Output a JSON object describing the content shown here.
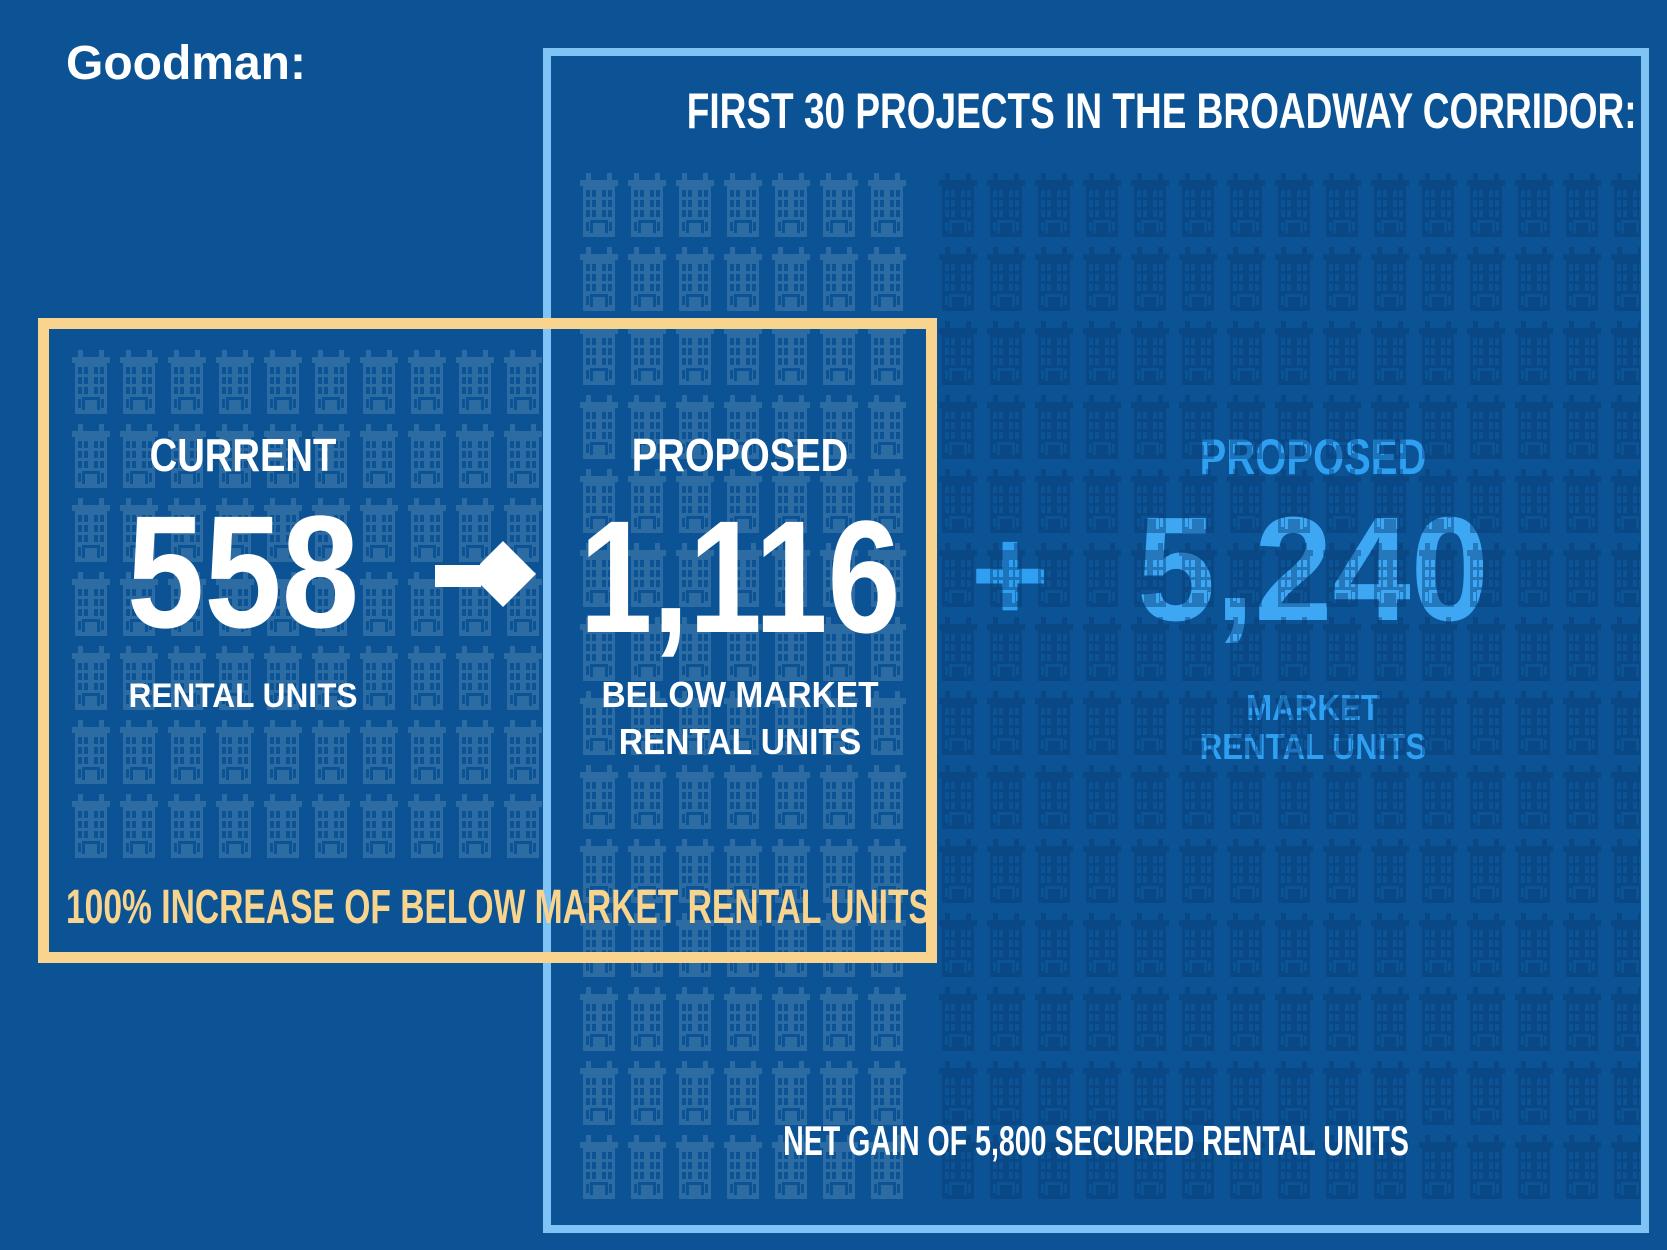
{
  "attribution": "Goodman:",
  "panel": {
    "title": "FIRST 30 PROJECTS IN THE BROADWAY CORRIDOR:",
    "footer": "NET GAIN OF 5,800 SECURED RENTAL UNITS"
  },
  "highlight": {
    "caption": "100% INCREASE OF BELOW MARKET RENTAL UNITS"
  },
  "current": {
    "label": "CURRENT",
    "value": "558",
    "unit": "RENTAL UNITS"
  },
  "below_market": {
    "label": "PROPOSED",
    "value": "1,116",
    "unit_line1": "BELOW MARKET",
    "unit_line2": "RENTAL UNITS"
  },
  "market": {
    "label": "PROPOSED",
    "plus": "+",
    "value": "5,240",
    "unit_line1": "MARKET",
    "unit_line2": "RENTAL UNITS"
  },
  "icons": {
    "building": "building-icon",
    "arrow": "right-arrow-icon"
  },
  "colors": {
    "background": "#0B5394",
    "panel_border": "#7FC4F4",
    "accent_yellow": "#F8D48E",
    "accent_blue": "#2E9FF1",
    "value_blue": "#3DA7F4",
    "white": "#FFFFFF"
  },
  "chart_data": {
    "type": "table",
    "title": "FIRST 30 PROJECTS IN THE BROADWAY CORRIDOR:",
    "categories": [
      "Current rental units",
      "Proposed below market rental units",
      "Proposed market rental units",
      "Net gain of secured rental units"
    ],
    "values": [
      558,
      1116,
      5240,
      5800
    ],
    "annotations": [
      "100% INCREASE OF BELOW MARKET RENTAL UNITS",
      "Goodman:"
    ]
  }
}
